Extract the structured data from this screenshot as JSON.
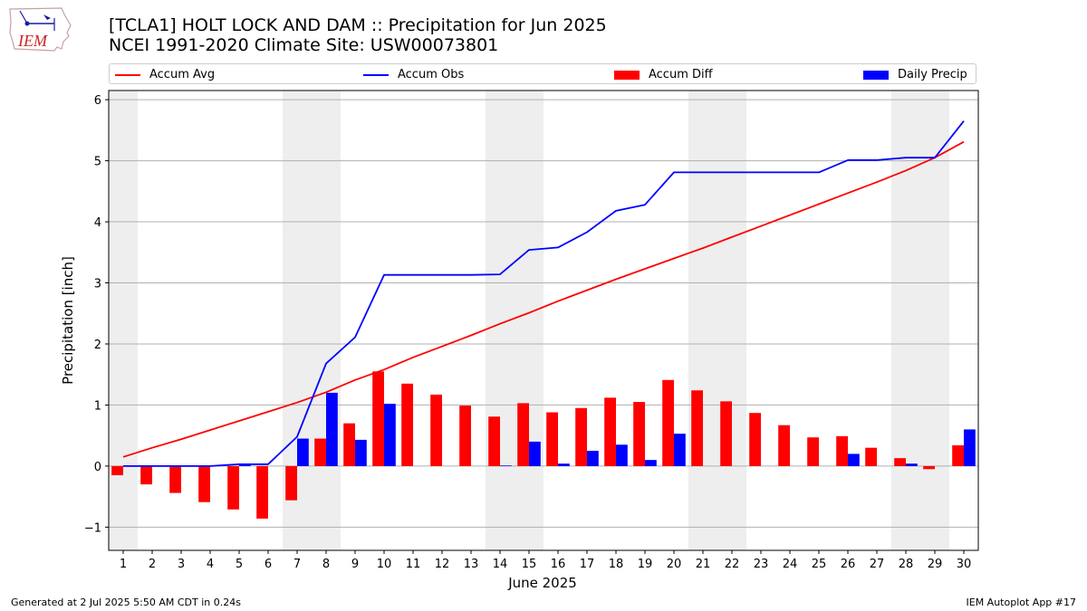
{
  "header": {
    "title_line1": "[TCLA1] HOLT LOCK AND DAM :: Precipitation for Jun 2025",
    "title_line2": "NCEI 1991-2020 Climate Site: USW00073801"
  },
  "logo": {
    "text": "IEM",
    "icon": "iowa-state-outline-logo-icon"
  },
  "footer": {
    "generated": "Generated at 2 Jul 2025 5:50 AM CDT in 0.24s",
    "app": "IEM Autoplot App #17"
  },
  "colors": {
    "accum_avg": "#ff0000",
    "accum_obs": "#0000ff",
    "accum_diff": "#ff0000",
    "daily_precip": "#0000ff",
    "weekend_shade": "#eeeeee",
    "grid": "#b0b0b0"
  },
  "chart_data": {
    "type": "bar",
    "xlabel": "June 2025",
    "ylabel": "Precipitation [inch]",
    "ylim": [
      -1.38,
      6.15
    ],
    "yticks": [
      -1,
      0,
      1,
      2,
      3,
      4,
      5,
      6
    ],
    "ytick_labels": [
      "−1",
      "0",
      "1",
      "2",
      "3",
      "4",
      "5",
      "6"
    ],
    "grid": "horizontal",
    "legend_position": "top",
    "days": [
      1,
      2,
      3,
      4,
      5,
      6,
      7,
      8,
      9,
      10,
      11,
      12,
      13,
      14,
      15,
      16,
      17,
      18,
      19,
      20,
      21,
      22,
      23,
      24,
      25,
      26,
      27,
      28,
      29,
      30
    ],
    "shaded_days": [
      1,
      7,
      8,
      14,
      15,
      21,
      22,
      28,
      29
    ],
    "series": [
      {
        "name": "Accum Avg",
        "kind": "line",
        "values": [
          0.15,
          0.3,
          0.44,
          0.59,
          0.74,
          0.89,
          1.04,
          1.21,
          1.41,
          1.58,
          1.78,
          1.96,
          2.14,
          2.33,
          2.51,
          2.7,
          2.88,
          3.06,
          3.23,
          3.4,
          3.57,
          3.75,
          3.93,
          4.11,
          4.29,
          4.47,
          4.65,
          4.84,
          5.05,
          5.31
        ]
      },
      {
        "name": "Accum Obs",
        "kind": "line",
        "values": [
          0.0,
          0.0,
          0.0,
          0.0,
          0.03,
          0.03,
          0.48,
          1.68,
          2.11,
          3.13,
          3.13,
          3.13,
          3.13,
          3.14,
          3.54,
          3.58,
          3.83,
          4.18,
          4.28,
          4.81,
          4.81,
          4.81,
          4.81,
          4.81,
          4.81,
          5.01,
          5.01,
          5.05,
          5.05,
          5.65
        ]
      },
      {
        "name": "Accum Diff",
        "kind": "bar",
        "values": [
          -0.15,
          -0.3,
          -0.44,
          -0.59,
          -0.71,
          -0.86,
          -0.56,
          0.45,
          0.7,
          1.55,
          1.35,
          1.17,
          0.99,
          0.81,
          1.03,
          0.88,
          0.95,
          1.12,
          1.05,
          1.41,
          1.24,
          1.06,
          0.87,
          0.67,
          0.47,
          0.49,
          0.3,
          0.13,
          -0.05,
          0.34
        ]
      },
      {
        "name": "Daily Precip",
        "kind": "bar",
        "values": [
          0.0,
          0.0,
          0.0,
          0.0,
          0.03,
          0.0,
          0.45,
          1.2,
          0.43,
          1.02,
          0.0,
          0.0,
          0.0,
          0.01,
          0.4,
          0.04,
          0.25,
          0.35,
          0.1,
          0.53,
          0.0,
          0.0,
          0.0,
          0.0,
          0.0,
          0.2,
          0.0,
          0.04,
          0.0,
          0.6
        ]
      }
    ]
  }
}
